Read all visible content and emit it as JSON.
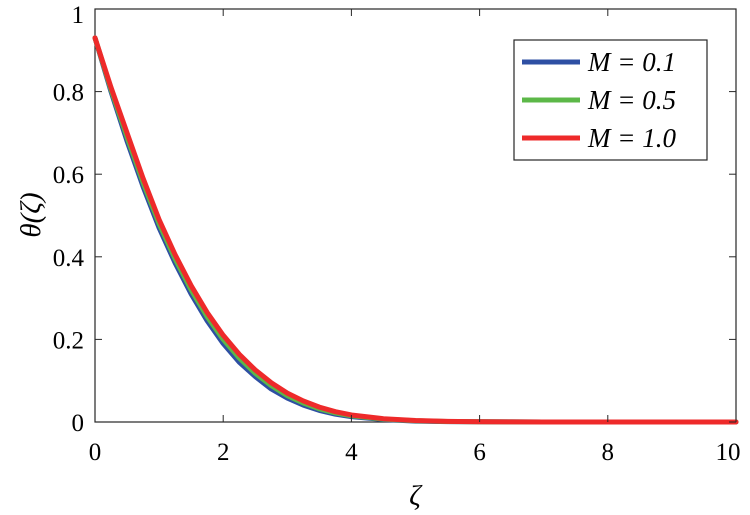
{
  "chart_data": {
    "type": "line",
    "title": "",
    "xlabel": "ζ",
    "ylabel": "θ(ζ)",
    "xlim": [
      0,
      10
    ],
    "ylim": [
      0,
      1
    ],
    "xticks": [
      0,
      2,
      4,
      6,
      8,
      10
    ],
    "yticks": [
      0,
      0.2,
      0.4,
      0.6,
      0.8,
      1
    ],
    "xtick_labels": [
      "0",
      "2",
      "4",
      "6",
      "8",
      "10"
    ],
    "ytick_labels": [
      "0",
      "0.2",
      "0.4",
      "0.6",
      "0.8",
      "1"
    ],
    "grid": false,
    "legend_position": "top-right",
    "x": [
      0,
      0.25,
      0.5,
      0.75,
      1,
      1.25,
      1.5,
      1.75,
      2,
      2.25,
      2.5,
      2.75,
      3,
      3.25,
      3.5,
      3.75,
      4,
      4.5,
      5,
      5.5,
      6,
      6.5,
      7,
      8,
      9,
      10
    ],
    "series": [
      {
        "name": "M = 0.1",
        "color": "#2e4fa3",
        "values": [
          0.93,
          0.8,
          0.68,
          0.57,
          0.47,
          0.385,
          0.31,
          0.245,
          0.19,
          0.145,
          0.11,
          0.08,
          0.058,
          0.041,
          0.028,
          0.019,
          0.013,
          0.006,
          0.002,
          0.001,
          0.0005,
          0.0002,
          0.0001,
          0,
          0,
          0
        ]
      },
      {
        "name": "M = 0.5",
        "color": "#5cb848",
        "values": [
          0.93,
          0.805,
          0.69,
          0.58,
          0.48,
          0.395,
          0.32,
          0.255,
          0.2,
          0.155,
          0.118,
          0.088,
          0.064,
          0.046,
          0.032,
          0.022,
          0.015,
          0.007,
          0.003,
          0.0012,
          0.0006,
          0.0003,
          0.0001,
          0,
          0,
          0
        ]
      },
      {
        "name": "M = 1.0",
        "color": "#ee2a2a",
        "values": [
          0.93,
          0.81,
          0.7,
          0.59,
          0.49,
          0.405,
          0.33,
          0.265,
          0.21,
          0.164,
          0.126,
          0.095,
          0.07,
          0.051,
          0.036,
          0.025,
          0.017,
          0.008,
          0.0035,
          0.0015,
          0.0007,
          0.0003,
          0.0001,
          0,
          0,
          0
        ]
      }
    ]
  }
}
